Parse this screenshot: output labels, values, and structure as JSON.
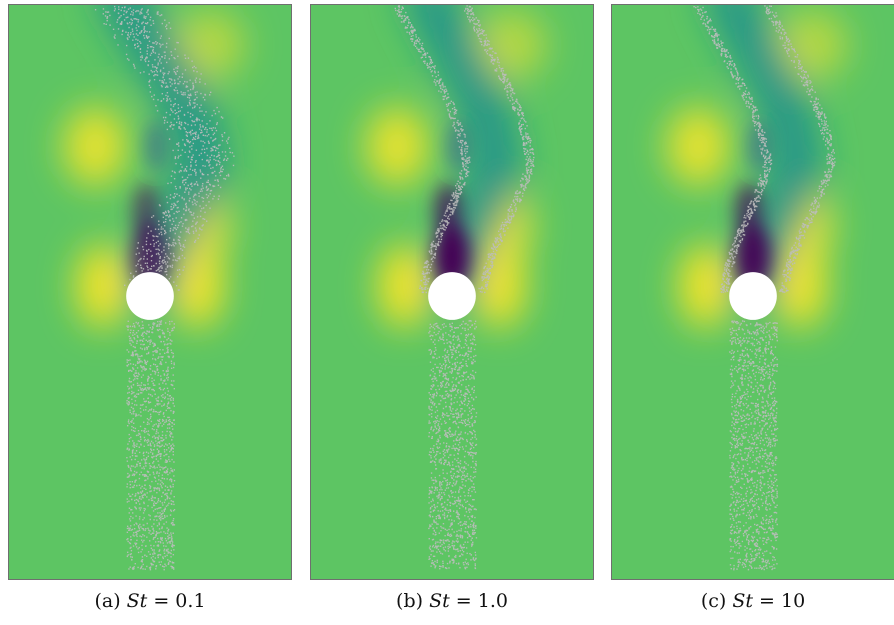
{
  "figure": {
    "panels": [
      {
        "label": "(a)",
        "symbol": "St",
        "eq": " = 0.1",
        "stokes": 0.1
      },
      {
        "label": "(b)",
        "symbol": "St",
        "eq": " = 1.0",
        "stokes": 1.0
      },
      {
        "label": "(c)",
        "symbol": "St",
        "eq": " = 10",
        "stokes": 10
      }
    ],
    "colors": {
      "background_green": "#5dc563",
      "high_yellow": "#fde725",
      "low_purple": "#440154",
      "wake_teal": "#21918c",
      "particles": "#bdbdbd",
      "cylinder": "#ffffff"
    }
  }
}
